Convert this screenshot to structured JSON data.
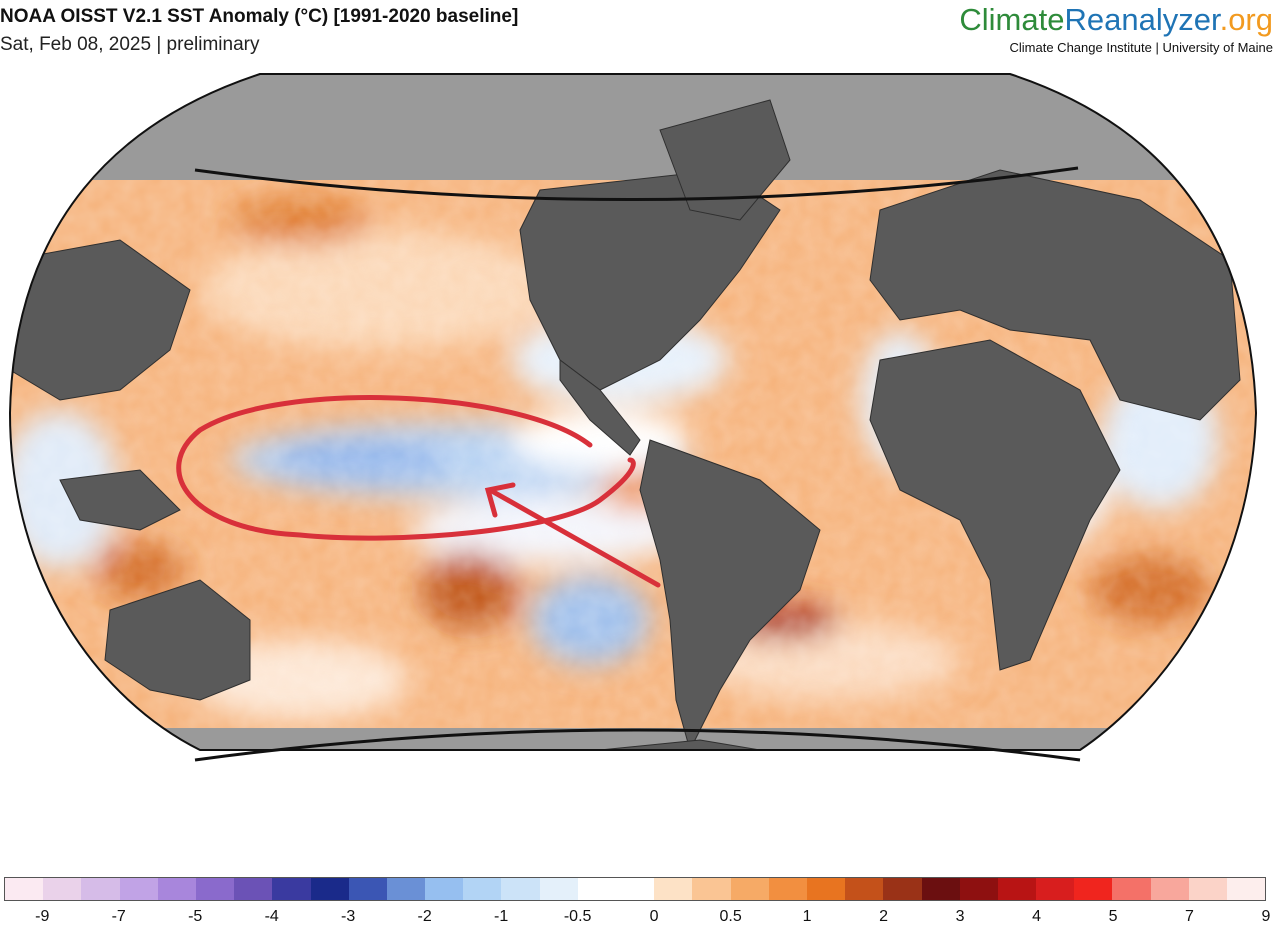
{
  "header": {
    "title": "NOAA OISST V2.1 SST Anomaly (°C) [1991-2020 baseline]",
    "subtitle": "Sat, Feb 08, 2025 | preliminary"
  },
  "brand": {
    "logo_part1": "Climate",
    "logo_part2": "Reanalyzer",
    "logo_part3": ".org",
    "tagline": "Climate Change Institute | University of Maine",
    "colors": {
      "part1": "#2e8b3a",
      "part2": "#1f74b5",
      "part3": "#f29a1f"
    }
  },
  "map": {
    "projection": "robinson",
    "land_color": "#5a5a5a",
    "ice_color": "#9a9a9a",
    "annotation_color": "#d8303a",
    "annotations": [
      "ellipse-around-equatorial-pacific",
      "arrow-pointing-west"
    ]
  },
  "legend": {
    "colors": [
      "#fbeaf2",
      "#ead2ea",
      "#d6bce8",
      "#c1a3e6",
      "#a886dc",
      "#8a6acc",
      "#6b52b6",
      "#3a3aa0",
      "#1a2a8a",
      "#3b56b4",
      "#6a90d6",
      "#96bff0",
      "#b2d4f5",
      "#cce3f8",
      "#e4f0fa",
      "#ffffff",
      "#ffffff",
      "#fde2c6",
      "#fac594",
      "#f6aa66",
      "#f28f40",
      "#e87420",
      "#c4511a",
      "#9a3217",
      "#6b0f10",
      "#8e1010",
      "#b81414",
      "#d81e1e",
      "#f0251e",
      "#f47168",
      "#f8a79c",
      "#fbd3c8",
      "#fdeeed"
    ],
    "tick_labels": [
      "-9",
      "-7",
      "-5",
      "-4",
      "-3",
      "-2",
      "-1",
      "-0.5",
      "0",
      "0.5",
      "1",
      "2",
      "3",
      "4",
      "5",
      "7",
      "9"
    ]
  }
}
